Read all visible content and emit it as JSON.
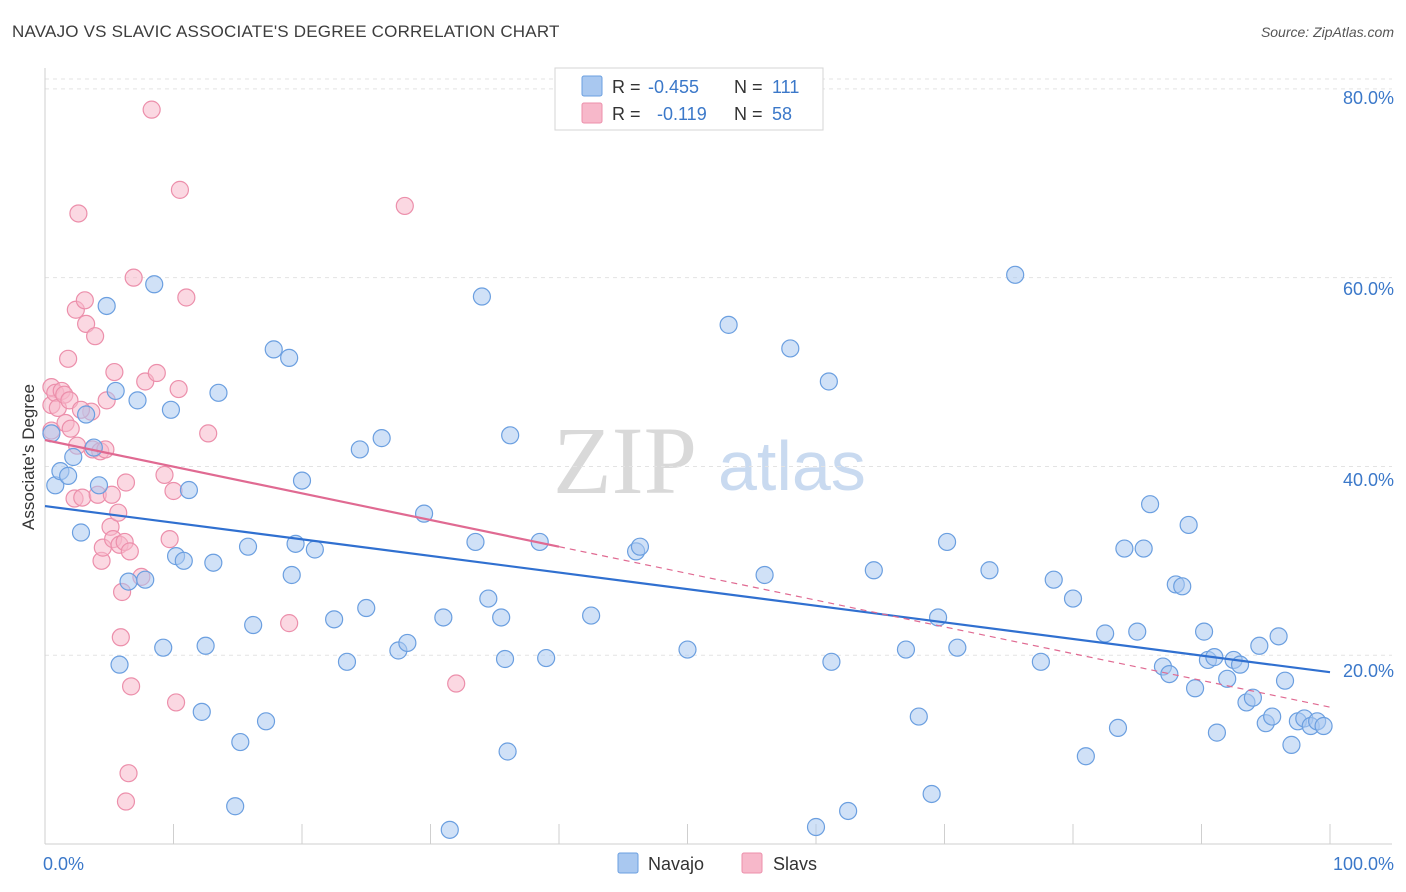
{
  "title": "NAVAJO VS SLAVIC ASSOCIATE'S DEGREE CORRELATION CHART",
  "source": "Source: ZipAtlas.com",
  "watermark": {
    "part1": "ZIP",
    "part2": "atlas"
  },
  "colors": {
    "navajo_fill": "#a9c8f0",
    "navajo_stroke": "#6b9fe0",
    "navajo_line": "#3070d0",
    "slavs_fill": "#f7b8ca",
    "slavs_stroke": "#ec8fab",
    "slavs_line": "#e06a92",
    "tick_label": "#3b78c9",
    "grid": "#e3e3e3"
  },
  "legend": {
    "rows": [
      {
        "r_label": "R =",
        "r_value": "-0.455",
        "n_label": "N =",
        "n_value": "111"
      },
      {
        "r_label": "R =",
        "r_value": "-0.119",
        "n_label": "N =",
        "n_value": "58"
      }
    ]
  },
  "bottom_legend": [
    "Navajo",
    "Slavs"
  ],
  "chart_data": {
    "type": "scatter",
    "xlabel": "",
    "ylabel": "Associate's Degree",
    "xlim": [
      0,
      100
    ],
    "ylim": [
      0,
      82
    ],
    "x_tick_labels": [
      "0.0%",
      "100.0%"
    ],
    "y_ticks": [
      20,
      40,
      60,
      80
    ],
    "y_tick_labels": [
      "20.0%",
      "40.0%",
      "60.0%",
      "80.0%"
    ],
    "grid": true,
    "series": [
      {
        "name": "Navajo",
        "trend": {
          "x": [
            0,
            100
          ],
          "y": [
            35.8,
            18.2
          ]
        },
        "points": [
          [
            0.5,
            43.5
          ],
          [
            0.8,
            38
          ],
          [
            1.2,
            39.5
          ],
          [
            1.8,
            39
          ],
          [
            2.2,
            41
          ],
          [
            2.8,
            33
          ],
          [
            3.2,
            45.5
          ],
          [
            3.8,
            42
          ],
          [
            4.2,
            38
          ],
          [
            4.8,
            57
          ],
          [
            5.5,
            48
          ],
          [
            5.8,
            19
          ],
          [
            6.5,
            27.8
          ],
          [
            7.2,
            47
          ],
          [
            7.8,
            28
          ],
          [
            8.5,
            59.3
          ],
          [
            9.2,
            20.8
          ],
          [
            9.8,
            46
          ],
          [
            10.2,
            30.5
          ],
          [
            10.8,
            30
          ],
          [
            11.2,
            37.5
          ],
          [
            12.2,
            14
          ],
          [
            12.5,
            21
          ],
          [
            13.1,
            29.8
          ],
          [
            13.5,
            47.8
          ],
          [
            14.8,
            4
          ],
          [
            15.2,
            10.8
          ],
          [
            15.8,
            31.5
          ],
          [
            16.2,
            23.2
          ],
          [
            17.2,
            13
          ],
          [
            17.8,
            52.4
          ],
          [
            19,
            51.5
          ],
          [
            19.2,
            28.5
          ],
          [
            19.5,
            31.8
          ],
          [
            20,
            38.5
          ],
          [
            21,
            31.2
          ],
          [
            22.5,
            23.8
          ],
          [
            23.5,
            19.3
          ],
          [
            24.5,
            41.8
          ],
          [
            25,
            25
          ],
          [
            26.2,
            43
          ],
          [
            27.5,
            20.5
          ],
          [
            28.2,
            21.3
          ],
          [
            29.5,
            35
          ],
          [
            31,
            24
          ],
          [
            31.5,
            1.5
          ],
          [
            33.5,
            32
          ],
          [
            34,
            58
          ],
          [
            34.5,
            26
          ],
          [
            35.5,
            24
          ],
          [
            35.8,
            19.6
          ],
          [
            36,
            9.8
          ],
          [
            36.2,
            43.3
          ],
          [
            38.5,
            32
          ],
          [
            39,
            19.7
          ],
          [
            42.5,
            24.2
          ],
          [
            46,
            31
          ],
          [
            46.3,
            31.5
          ],
          [
            50,
            20.6
          ],
          [
            53.2,
            55
          ],
          [
            56,
            28.5
          ],
          [
            58,
            52.5
          ],
          [
            60,
            1.8
          ],
          [
            61,
            49
          ],
          [
            61.2,
            19.3
          ],
          [
            62.5,
            3.5
          ],
          [
            64.5,
            29
          ],
          [
            67,
            20.6
          ],
          [
            68,
            13.5
          ],
          [
            69,
            5.3
          ],
          [
            69.5,
            24
          ],
          [
            70.2,
            32
          ],
          [
            71,
            20.8
          ],
          [
            73.5,
            29
          ],
          [
            75.5,
            60.3
          ],
          [
            77.5,
            19.3
          ],
          [
            78.5,
            28
          ],
          [
            80,
            26
          ],
          [
            81,
            9.3
          ],
          [
            82.5,
            22.3
          ],
          [
            83.5,
            12.3
          ],
          [
            84,
            31.3
          ],
          [
            85,
            22.5
          ],
          [
            85.5,
            31.3
          ],
          [
            86,
            36
          ],
          [
            87,
            18.8
          ],
          [
            87.5,
            18
          ],
          [
            88,
            27.5
          ],
          [
            88.5,
            27.3
          ],
          [
            89,
            33.8
          ],
          [
            89.5,
            16.5
          ],
          [
            90.2,
            22.5
          ],
          [
            90.5,
            19.5
          ],
          [
            91,
            19.8
          ],
          [
            91.2,
            11.8
          ],
          [
            92,
            17.5
          ],
          [
            92.5,
            19.5
          ],
          [
            93,
            19
          ],
          [
            93.5,
            15
          ],
          [
            94,
            15.5
          ],
          [
            94.5,
            21
          ],
          [
            95,
            12.8
          ],
          [
            95.5,
            13.5
          ],
          [
            96,
            22
          ],
          [
            96.5,
            17.3
          ],
          [
            97,
            10.5
          ],
          [
            97.5,
            13
          ],
          [
            98,
            13.3
          ],
          [
            98.5,
            12.5
          ],
          [
            99,
            13
          ],
          [
            99.5,
            12.5
          ]
        ]
      },
      {
        "name": "Slavs",
        "trend": {
          "x": [
            0,
            40
          ],
          "y": [
            42.8,
            31.5
          ]
        },
        "trend_dashed": {
          "x": [
            40,
            100
          ],
          "y": [
            31.5,
            14.5
          ]
        },
        "points": [
          [
            0.5,
            48.4
          ],
          [
            0.5,
            46.5
          ],
          [
            0.5,
            43.8
          ],
          [
            0.8,
            47.8
          ],
          [
            1,
            46.2
          ],
          [
            1.3,
            48
          ],
          [
            1.5,
            47.6
          ],
          [
            1.6,
            44.6
          ],
          [
            1.8,
            51.4
          ],
          [
            1.9,
            47
          ],
          [
            2,
            44
          ],
          [
            2.3,
            36.6
          ],
          [
            2.4,
            56.6
          ],
          [
            2.5,
            42.2
          ],
          [
            2.6,
            66.8
          ],
          [
            2.9,
            36.7
          ],
          [
            3.1,
            57.6
          ],
          [
            3.2,
            55.1
          ],
          [
            3.6,
            45.8
          ],
          [
            3.7,
            41.8
          ],
          [
            3.9,
            53.8
          ],
          [
            4.1,
            37
          ],
          [
            4.3,
            41.6
          ],
          [
            4.4,
            30
          ],
          [
            4.5,
            31.4
          ],
          [
            4.7,
            41.8
          ],
          [
            5.1,
            33.6
          ],
          [
            5.2,
            37
          ],
          [
            5.3,
            32.3
          ],
          [
            5.4,
            50
          ],
          [
            5.7,
            35.1
          ],
          [
            5.8,
            31.7
          ],
          [
            5.9,
            21.9
          ],
          [
            6,
            26.7
          ],
          [
            6.2,
            32
          ],
          [
            6.3,
            38.3
          ],
          [
            6.5,
            7.5
          ],
          [
            6.6,
            31
          ],
          [
            6.7,
            16.7
          ],
          [
            6.9,
            60
          ],
          [
            7.5,
            28.3
          ],
          [
            7.8,
            49
          ],
          [
            8.3,
            77.8
          ],
          [
            8.7,
            49.9
          ],
          [
            9.3,
            39.1
          ],
          [
            9.7,
            32.3
          ],
          [
            10,
            37.4
          ],
          [
            10.2,
            15
          ],
          [
            10.4,
            48.2
          ],
          [
            10.5,
            69.3
          ],
          [
            11,
            57.9
          ],
          [
            12.7,
            43.5
          ],
          [
            19,
            23.4
          ],
          [
            28,
            67.6
          ],
          [
            32,
            17
          ],
          [
            6.3,
            4.5
          ],
          [
            2.8,
            46
          ],
          [
            4.8,
            47
          ]
        ]
      }
    ]
  }
}
